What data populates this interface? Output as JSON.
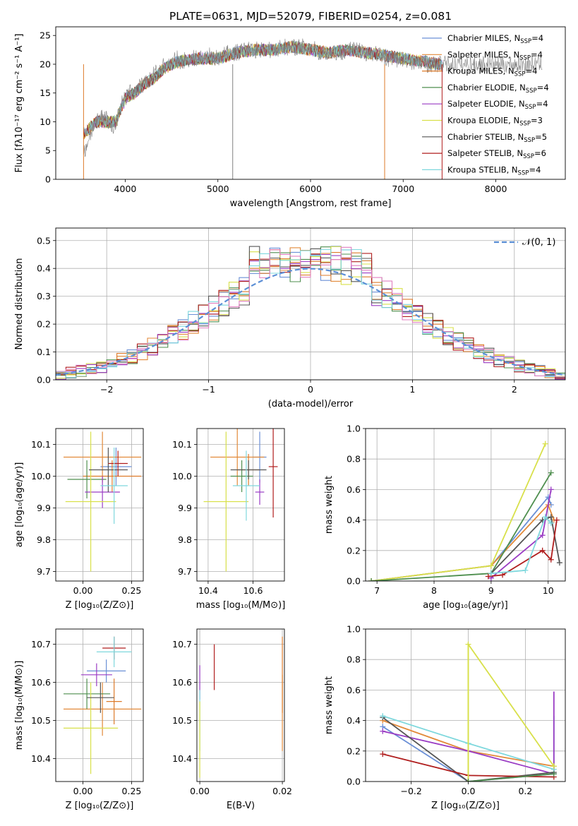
{
  "figure": {
    "title": "PLATE=0631, MJD=52079, FIBERID=0254, z=0.081"
  },
  "models": [
    {
      "name": "Chabrier MILES",
      "nssp": 4,
      "color": "#6a8fd6"
    },
    {
      "name": "Salpeter MILES",
      "nssp": 4,
      "color": "#e28a3a"
    },
    {
      "name": "Kroupa MILES",
      "nssp": 4,
      "color": "#dd7b2a"
    },
    {
      "name": "Chabrier ELODIE",
      "nssp": 4,
      "color": "#4f8f4f"
    },
    {
      "name": "Salpeter ELODIE",
      "nssp": 4,
      "color": "#9a3cc4"
    },
    {
      "name": "Kroupa ELODIE",
      "nssp": 3,
      "color": "#d8e04a"
    },
    {
      "name": "Chabrier STELIB",
      "nssp": 5,
      "color": "#555555"
    },
    {
      "name": "Salpeter STELIB",
      "nssp": 6,
      "color": "#b01e1e"
    },
    {
      "name": "Kroupa STELIB",
      "nssp": 4,
      "color": "#7fd8dd"
    }
  ],
  "chart_data": [
    {
      "id": "spectrum",
      "type": "line",
      "xlabel": "wavelength [Angstrom, rest frame]",
      "ylabel": "Flux [fλ10⁻¹⁷ erg cm⁻² s⁻¹ A⁻¹]",
      "xlim": [
        3250,
        8750
      ],
      "ylim": [
        0,
        26.5
      ],
      "xticks": [
        4000,
        5000,
        6000,
        7000,
        8000
      ],
      "yticks": [
        0,
        5,
        10,
        15,
        20,
        25
      ],
      "grid": false,
      "legend": "right",
      "data_color": "#808080",
      "data_x": [
        3550,
        3600,
        3650,
        3700,
        3750,
        3800,
        3850,
        3900,
        3950,
        4000,
        4050,
        4100,
        4150,
        4200,
        4250,
        4300,
        4350,
        4400,
        4450,
        4500,
        4550,
        4600,
        4700,
        4800,
        4900,
        5000,
        5100,
        5200,
        5300,
        5400,
        5500,
        5600,
        5700,
        5800,
        5900,
        6000,
        6100,
        6200,
        6300,
        6400,
        6500,
        6600,
        6700,
        6800,
        6900,
        7000,
        7100,
        7200,
        7300,
        7400,
        7500,
        7600,
        7700,
        7800,
        7900,
        8000,
        8100,
        8200,
        8300,
        8400,
        8500
      ],
      "data_y": [
        4,
        7,
        9,
        10,
        11,
        11,
        9,
        9.5,
        13,
        14,
        15,
        15.5,
        16,
        16.5,
        17,
        18,
        19,
        19.5,
        20,
        20,
        21,
        20.5,
        21,
        21,
        21.5,
        21,
        22,
        22,
        22.5,
        22.5,
        22.5,
        22.5,
        23,
        23,
        23,
        23,
        22,
        22,
        22,
        22.5,
        22.5,
        22,
        22,
        21,
        21,
        20.5,
        20.5,
        20,
        20,
        20,
        20,
        20,
        20,
        20,
        20,
        20,
        20,
        20,
        20,
        20,
        20
      ],
      "model_x": [
        3550,
        3700,
        3900,
        4000,
        4100,
        4200,
        4300,
        4400,
        4500,
        4600,
        4800,
        5000,
        5200,
        5400,
        5600,
        5800,
        6000,
        6200,
        6400,
        6600,
        6800,
        7000,
        7200,
        7400
      ],
      "model_y": [
        8,
        10,
        10,
        14,
        15,
        16.5,
        17.5,
        19,
        20,
        20.5,
        21,
        21,
        22,
        22.5,
        22.5,
        23,
        22.5,
        22,
        22.5,
        22,
        21.5,
        21,
        20.5,
        20
      ]
    },
    {
      "id": "residual-hist",
      "type": "bar",
      "xlabel": "(data-model)/error",
      "ylabel": "Normed distribution",
      "xlim": [
        -2.5,
        2.5
      ],
      "ylim": [
        0,
        0.545
      ],
      "xticks": [
        -2,
        -1,
        0,
        1,
        2
      ],
      "yticks": [
        0.0,
        0.1,
        0.2,
        0.3,
        0.4,
        0.5
      ],
      "grid": true,
      "legend": "top-right",
      "gauss_label": "𝒩(0, 1)",
      "bin_edges_start": -2.5,
      "bin_width": 0.1
    },
    {
      "id": "age-vs-Z",
      "type": "scatter",
      "xlabel": "Z [log₁₀(Z/Z⊙)]",
      "ylabel": "age  [log₁₀(age/yr)]",
      "xlim": [
        -0.14,
        0.31
      ],
      "ylim": [
        9.67,
        10.15
      ],
      "xticks": [
        0.0,
        0.25
      ],
      "yticks": [
        9.7,
        9.8,
        9.9,
        10.0,
        10.1
      ],
      "grid": true,
      "points": [
        {
          "m": 0,
          "x": 0.17,
          "y": 10.03,
          "xe": 0.08,
          "ye": 0.06
        },
        {
          "m": 1,
          "x": 0.1,
          "y": 10.06,
          "xe": 0.2,
          "ye": 0.08
        },
        {
          "m": 2,
          "x": 0.15,
          "y": 10.0,
          "xe": 0.15,
          "ye": 0.05
        },
        {
          "m": 3,
          "x": 0.02,
          "y": 9.99,
          "xe": 0.1,
          "ye": 0.06
        },
        {
          "m": 4,
          "x": 0.1,
          "y": 9.95,
          "xe": 0.09,
          "ye": 0.05
        },
        {
          "m": 5,
          "x": 0.04,
          "y": 9.92,
          "xe": 0.13,
          "ye": 0.22
        },
        {
          "m": 6,
          "x": 0.13,
          "y": 10.02,
          "xe": 0.1,
          "ye": 0.07
        },
        {
          "m": 7,
          "x": 0.18,
          "y": 10.04,
          "xe": 0.05,
          "ye": 0.04
        },
        {
          "m": 8,
          "x": 0.16,
          "y": 9.97,
          "xe": 0.07,
          "ye": 0.12
        }
      ]
    },
    {
      "id": "age-vs-mass",
      "type": "scatter",
      "xlabel": "mass [log₁₀(M/M⊙)]",
      "ylabel": "",
      "xlim": [
        10.35,
        10.74
      ],
      "ylim": [
        9.67,
        10.15
      ],
      "xticks": [
        10.4,
        10.6
      ],
      "yticks": [
        9.7,
        9.8,
        9.9,
        10.0,
        10.1
      ],
      "grid": true,
      "points": [
        {
          "m": 0,
          "x": 10.63,
          "y": 10.06,
          "xe": 0.03,
          "ye": 0.08
        },
        {
          "m": 1,
          "x": 10.53,
          "y": 10.06,
          "xe": 0.12,
          "ye": 0.09
        },
        {
          "m": 2,
          "x": 10.58,
          "y": 10.02,
          "xe": 0.05,
          "ye": 0.05
        },
        {
          "m": 3,
          "x": 10.55,
          "y": 10.0,
          "xe": 0.05,
          "ye": 0.05
        },
        {
          "m": 4,
          "x": 10.63,
          "y": 9.95,
          "xe": 0.02,
          "ye": 0.04
        },
        {
          "m": 5,
          "x": 10.48,
          "y": 9.92,
          "xe": 0.1,
          "ye": 0.22
        },
        {
          "m": 6,
          "x": 10.58,
          "y": 10.02,
          "xe": 0.08,
          "ye": 0.03
        },
        {
          "m": 7,
          "x": 10.69,
          "y": 10.03,
          "xe": 0.02,
          "ye": 0.16
        },
        {
          "m": 8,
          "x": 10.57,
          "y": 9.97,
          "xe": 0.06,
          "ye": 0.11
        }
      ]
    },
    {
      "id": "weight-vs-age",
      "type": "line",
      "xlabel": "age  [log₁₀(age/yr)]",
      "ylabel": "mass weight",
      "xlim": [
        6.8,
        10.3
      ],
      "ylim": [
        0,
        1.0
      ],
      "xticks": [
        7,
        8,
        9,
        10
      ],
      "yticks": [
        0.0,
        0.2,
        0.4,
        0.6,
        0.8,
        1.0
      ],
      "grid": true,
      "series": [
        {
          "m": 0,
          "x": [
            6.9,
            9.0,
            10.0,
            10.05
          ],
          "y": [
            0.0,
            0.1,
            0.55,
            0.5
          ]
        },
        {
          "m": 1,
          "x": [
            6.9,
            9.0,
            10.0,
            10.1
          ],
          "y": [
            0.0,
            0.1,
            0.5,
            0.4
          ]
        },
        {
          "m": 5,
          "x": [
            6.9,
            9.0,
            9.95
          ],
          "y": [
            0.0,
            0.1,
            0.9
          ]
        },
        {
          "m": 3,
          "x": [
            6.9,
            9.0,
            10.05
          ],
          "y": [
            0.0,
            0.05,
            0.71
          ]
        },
        {
          "m": 4,
          "x": [
            9.0,
            9.9,
            10.05
          ],
          "y": [
            0.02,
            0.3,
            0.6
          ]
        },
        {
          "m": 6,
          "x": [
            9.0,
            9.9,
            10.05,
            10.2
          ],
          "y": [
            0.05,
            0.4,
            0.42,
            0.12
          ]
        },
        {
          "m": 7,
          "x": [
            8.95,
            9.2,
            9.9,
            10.05,
            10.15
          ],
          "y": [
            0.03,
            0.04,
            0.2,
            0.14,
            0.4
          ]
        },
        {
          "m": 8,
          "x": [
            9.0,
            9.6,
            9.95,
            10.05
          ],
          "y": [
            0.05,
            0.07,
            0.42,
            0.38
          ]
        }
      ]
    },
    {
      "id": "mass-vs-Z",
      "type": "scatter",
      "xlabel": "Z [log₁₀(Z/Z⊙)]",
      "ylabel": "mass [log₁₀(M/M⊙)]",
      "xlim": [
        -0.14,
        0.31
      ],
      "ylim": [
        10.34,
        10.74
      ],
      "xticks": [
        0.0,
        0.25
      ],
      "yticks": [
        10.4,
        10.5,
        10.6,
        10.7
      ],
      "grid": true,
      "points": [
        {
          "m": 0,
          "x": 0.12,
          "y": 10.63,
          "xe": 0.1,
          "ye": 0.03
        },
        {
          "m": 1,
          "x": 0.1,
          "y": 10.53,
          "xe": 0.2,
          "ye": 0.07
        },
        {
          "m": 2,
          "x": 0.16,
          "y": 10.55,
          "xe": 0.04,
          "ye": 0.06
        },
        {
          "m": 3,
          "x": 0.02,
          "y": 10.57,
          "xe": 0.12,
          "ye": 0.04
        },
        {
          "m": 4,
          "x": 0.07,
          "y": 10.62,
          "xe": 0.08,
          "ye": 0.03
        },
        {
          "m": 5,
          "x": 0.04,
          "y": 10.48,
          "xe": 0.14,
          "ye": 0.12
        },
        {
          "m": 6,
          "x": 0.09,
          "y": 10.56,
          "xe": 0.07,
          "ye": 0.04
        },
        {
          "m": 7,
          "x": 0.16,
          "y": 10.69,
          "xe": 0.06,
          "ye": 0.03
        },
        {
          "m": 8,
          "x": 0.16,
          "y": 10.68,
          "xe": 0.09,
          "ye": 0.04
        }
      ]
    },
    {
      "id": "mass-vs-ebv",
      "type": "scatter",
      "xlabel": "E(B-V)",
      "ylabel": "",
      "xlim": [
        -0.0007,
        0.0205
      ],
      "ylim": [
        10.34,
        10.74
      ],
      "xticks": [
        0.0,
        0.02
      ],
      "yticks": [
        10.4,
        10.5,
        10.6,
        10.7
      ],
      "grid": true,
      "points": [
        {
          "m": 4,
          "x": 0.0,
          "y": 10.6,
          "xe": 0.0,
          "ye": 0.045
        },
        {
          "m": 8,
          "x": 0.0,
          "y": 10.5,
          "xe": 0.0,
          "ye": 0.08
        },
        {
          "m": 5,
          "x": 0.0,
          "y": 10.45,
          "xe": 0.0,
          "ye": 0.1
        },
        {
          "m": 7,
          "x": 0.0035,
          "y": 10.64,
          "xe": 0.0,
          "ye": 0.06
        },
        {
          "m": 1,
          "x": 0.02,
          "y": 10.52,
          "xe": 0.0,
          "ye": 0.1
        },
        {
          "m": 2,
          "x": 0.02,
          "y": 10.62,
          "xe": 0.0,
          "ye": 0.1
        }
      ]
    },
    {
      "id": "weight-vs-Z",
      "type": "line",
      "xlabel": "Z [log₁₀(Z/Z⊙)]",
      "ylabel": "mass weight",
      "xlim": [
        -0.36,
        0.34
      ],
      "ylim": [
        0,
        1.0
      ],
      "xticks": [
        -0.2,
        0.0,
        0.2
      ],
      "yticks": [
        0.0,
        0.2,
        0.4,
        0.6,
        0.8,
        1.0
      ],
      "grid": true,
      "series": [
        {
          "m": 0,
          "x": [
            -0.3,
            0.0,
            0.3
          ],
          "y": [
            0.36,
            0.0,
            0.05
          ]
        },
        {
          "m": 1,
          "x": [
            -0.3,
            0.0,
            0.3
          ],
          "y": [
            0.4,
            0.2,
            0.1
          ]
        },
        {
          "m": 4,
          "x": [
            -0.3,
            0.0,
            0.3
          ],
          "y": [
            0.33,
            0.2,
            0.05
          ]
        },
        {
          "m": 6,
          "x": [
            -0.3,
            0.0,
            0.3
          ],
          "y": [
            0.42,
            0.0,
            0.06
          ]
        },
        {
          "m": 7,
          "x": [
            -0.3,
            0.0,
            0.3
          ],
          "y": [
            0.18,
            0.04,
            0.03
          ]
        },
        {
          "m": 8,
          "x": [
            -0.3,
            0.0,
            0.3
          ],
          "y": [
            0.43,
            0.25,
            0.08
          ]
        },
        {
          "m": 5,
          "x": [
            0.0,
            0.0,
            0.3
          ],
          "y": [
            0.0,
            0.9,
            0.1
          ]
        },
        {
          "m": 3,
          "x": [
            0.0,
            0.3
          ],
          "y": [
            0.0,
            0.05
          ]
        }
      ],
      "vbars": [
        {
          "m": 5,
          "x": 0.0,
          "ylo": 0.0,
          "yhi": 0.9
        },
        {
          "m": 8,
          "x": 0.3,
          "ylo": 0.05,
          "yhi": 0.43
        },
        {
          "m": 4,
          "x": 0.3,
          "ylo": 0.05,
          "yhi": 0.59
        }
      ]
    }
  ]
}
